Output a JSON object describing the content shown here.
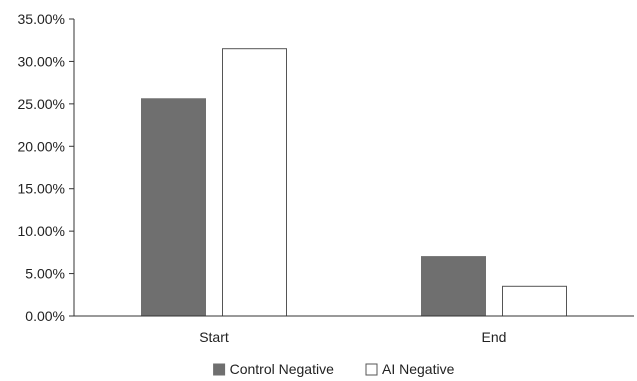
{
  "chart_data": {
    "type": "bar",
    "title": "",
    "xlabel": "",
    "ylabel": "",
    "categories": [
      "Start",
      "End"
    ],
    "series": [
      {
        "name": "Control Negative",
        "values": [
          25.6,
          7.0
        ],
        "color": "#6f6f6f",
        "stroke": "#6f6f6f"
      },
      {
        "name": "AI Negative",
        "values": [
          31.5,
          3.5
        ],
        "color": "#ffffff",
        "stroke": "#555555"
      }
    ],
    "ylim": [
      0,
      35
    ],
    "yticks": [
      0,
      5,
      10,
      15,
      20,
      25,
      30,
      35
    ],
    "ytick_labels": [
      "0.00%",
      "5.00%",
      "10.00%",
      "15.00%",
      "20.00%",
      "25.00%",
      "30.00%",
      "35.00%"
    ],
    "grid": false,
    "legend_position": "bottom"
  }
}
